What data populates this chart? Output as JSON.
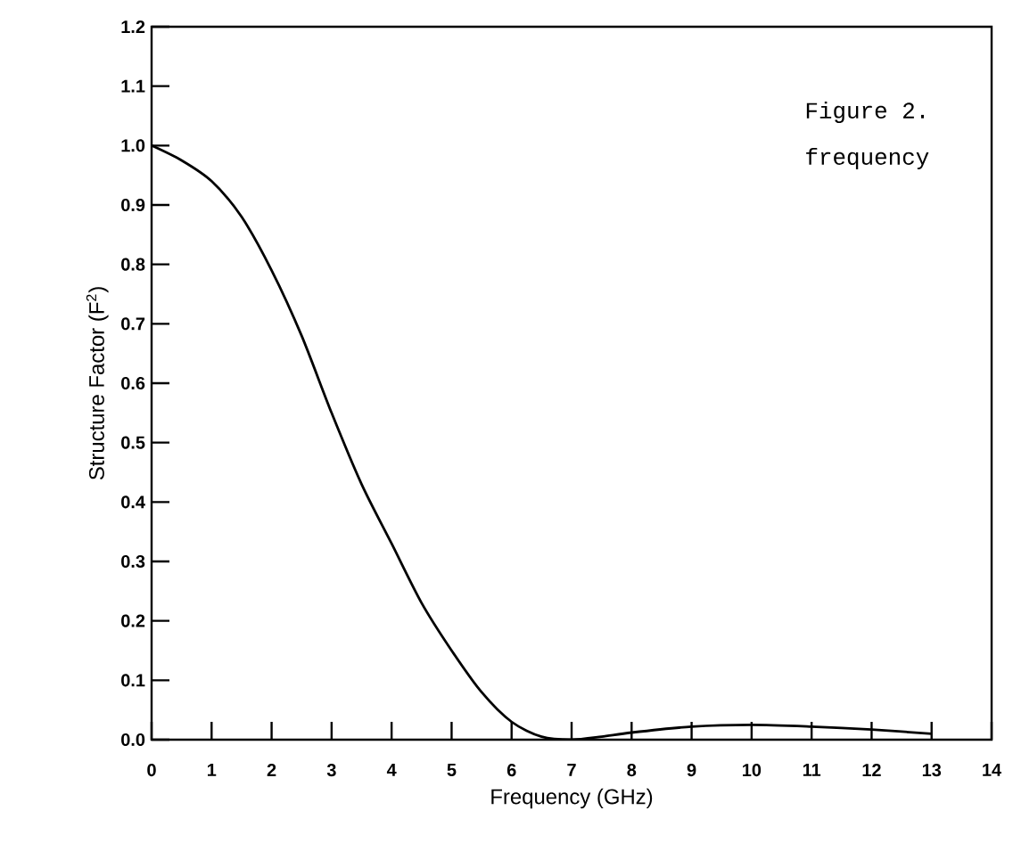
{
  "chart_data": {
    "type": "line",
    "xlabel": "Frequency (GHz)",
    "ylabel": "Structure Factor (F$^{2}$)",
    "x": [
      0,
      0.5,
      1,
      1.5,
      2,
      2.5,
      3,
      3.5,
      4,
      4.5,
      5,
      5.5,
      6,
      6.5,
      7,
      7.5,
      8,
      9,
      10,
      11,
      12,
      13
    ],
    "values": [
      1.0,
      0.975,
      0.94,
      0.88,
      0.79,
      0.68,
      0.55,
      0.43,
      0.33,
      0.23,
      0.15,
      0.08,
      0.03,
      0.005,
      0,
      0.005,
      0.012,
      0.022,
      0.025,
      0.022,
      0.017,
      0.01
    ],
    "color": "#000000",
    "xlim": [
      0,
      14
    ],
    "ylim": [
      0,
      1.2
    ],
    "xticks": [
      0,
      1,
      2,
      3,
      4,
      5,
      6,
      7,
      8,
      9,
      10,
      11,
      12,
      13,
      14
    ],
    "yticks": [
      {
        "value": 0,
        "label": "0.0"
      },
      {
        "value": 0.1,
        "label": "0.1"
      },
      {
        "value": 0.2,
        "label": "0.2"
      },
      {
        "value": 0.3,
        "label": "0.3"
      },
      {
        "value": 0.4,
        "label": "0.4"
      },
      {
        "value": 0.5,
        "label": "0.5"
      },
      {
        "value": 0.6,
        "label": "0.6"
      },
      {
        "value": 0.7,
        "label": "0.7"
      },
      {
        "value": 0.8,
        "label": "0.8"
      },
      {
        "value": 0.9,
        "label": "0.9"
      },
      {
        "value": 1.0,
        "label": "1.0"
      },
      {
        "value": 1.1,
        "label": "1.1"
      },
      {
        "value": 1.2,
        "label": "1.2"
      }
    ],
    "annotations": [
      "Figure 2.",
      "frequency"
    ],
    "grid": false,
    "marker": "none",
    "line_style": "solid"
  }
}
